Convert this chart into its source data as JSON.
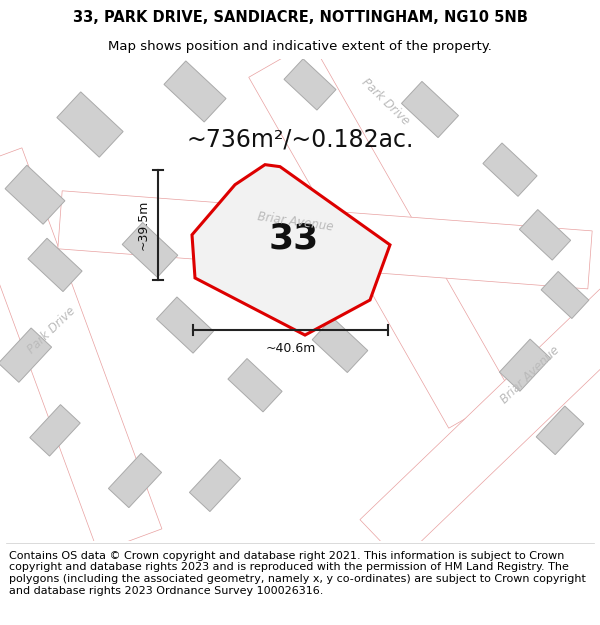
{
  "title_line1": "33, PARK DRIVE, SANDIACRE, NOTTINGHAM, NG10 5NB",
  "title_line2": "Map shows position and indicative extent of the property.",
  "footer_text": "Contains OS data © Crown copyright and database right 2021. This information is subject to Crown copyright and database rights 2023 and is reproduced with the permission of HM Land Registry. The polygons (including the associated geometry, namely x, y co-ordinates) are subject to Crown copyright and database rights 2023 Ordnance Survey 100026316.",
  "area_label": "~736m²/~0.182ac.",
  "house_number": "33",
  "dim_width": "~40.6m",
  "dim_height": "~39.5m",
  "map_bg": "#eeeeee",
  "road_fill": "#ffffff",
  "road_stroke": "#e8a0a0",
  "building_fill": "#d0d0d0",
  "building_stroke": "#aaaaaa",
  "property_stroke": "#dd0000",
  "dim_color": "#222222",
  "road_label_color": "#bbbbbb",
  "title_fontsize": 10.5,
  "subtitle_fontsize": 9.5,
  "footer_fontsize": 8,
  "area_fontsize": 17,
  "number_fontsize": 26,
  "dim_fontsize": 9,
  "street_label_fontsize": 8.5
}
